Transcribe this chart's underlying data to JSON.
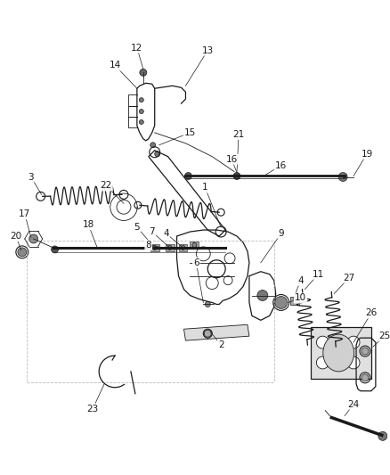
{
  "bg_color": "#ffffff",
  "line_color": "#1a1a1a",
  "gray_color": "#888888",
  "light_gray": "#cccccc",
  "dashed_color": "#aaaaaa",
  "figsize": [
    4.38,
    5.33
  ],
  "dpi": 100
}
